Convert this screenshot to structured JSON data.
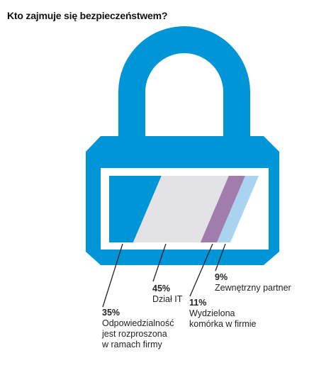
{
  "title": "Kto zajmuje się bezpieczeństwem?",
  "colors": {
    "lock": "#0095D6",
    "lock_outline": "#ffffff",
    "window_bg": "#ffffff"
  },
  "chart_data": {
    "type": "bar",
    "orientation": "horizontal-stacked",
    "title": "Kto zajmuje się bezpieczeństwem?",
    "segments": [
      {
        "label": "Odpowiedzialność jest rozproszona w ramach firmy",
        "value": 35,
        "pct_label": "35%",
        "color": "#0095D6",
        "label_lines": [
          "Odpowiedzialność",
          "jest rozproszona",
          "w ramach firmy"
        ]
      },
      {
        "label": "Dział IT",
        "value": 45,
        "pct_label": "45%",
        "color": "#E3E3E5",
        "label_lines": [
          "Dział IT"
        ]
      },
      {
        "label": "Wydzielona komórka w firmie",
        "value": 11,
        "pct_label": "11%",
        "color": "#A07DAD",
        "label_lines": [
          "Wydzielona",
          "komórka w firmie"
        ]
      },
      {
        "label": "Zewnętrzny partner",
        "value": 9,
        "pct_label": "9%",
        "color": "#A9D3EF",
        "label_lines": [
          "Zewnętrzny partner"
        ]
      }
    ]
  }
}
